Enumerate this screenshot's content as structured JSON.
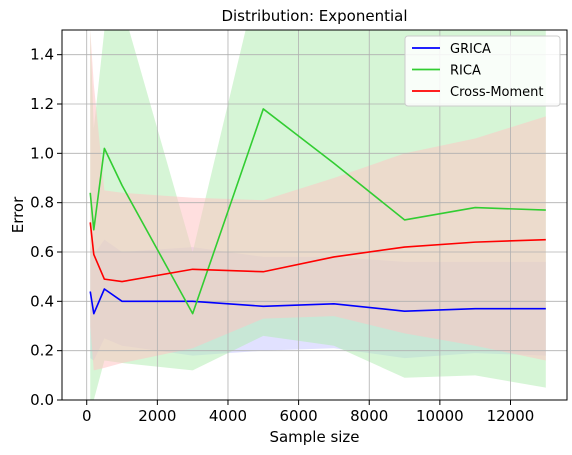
{
  "chart_data": {
    "type": "line",
    "title": "Distribution: Exponential",
    "xlabel": "Sample size",
    "ylabel": "Error",
    "xlim": [
      -700,
      13600
    ],
    "ylim": [
      0,
      1.5
    ],
    "xticks": [
      0,
      2000,
      4000,
      6000,
      8000,
      10000,
      12000
    ],
    "yticks": [
      0.0,
      0.2,
      0.4,
      0.6,
      0.8,
      1.0,
      1.2,
      1.4
    ],
    "grid": true,
    "legend_position": "top-right",
    "x": [
      100,
      200,
      500,
      1000,
      3000,
      5000,
      7000,
      9000,
      11000,
      13000
    ],
    "series": [
      {
        "name": "GRICA",
        "color": "#0000ff",
        "band_color": "#c8c8ff",
        "values": [
          0.44,
          0.35,
          0.45,
          0.4,
          0.4,
          0.38,
          0.39,
          0.36,
          0.37,
          0.37
        ],
        "lower": [
          0.17,
          0.16,
          0.25,
          0.22,
          0.18,
          0.2,
          0.21,
          0.17,
          0.19,
          0.18
        ],
        "upper": [
          0.62,
          0.59,
          0.65,
          0.6,
          0.62,
          0.58,
          0.58,
          0.56,
          0.56,
          0.56
        ]
      },
      {
        "name": "RICA",
        "color": "#32cd32",
        "band_color": "#b4ecb4",
        "values": [
          0.84,
          0.69,
          1.02,
          0.87,
          0.35,
          1.18,
          0.96,
          0.73,
          0.78,
          0.77
        ],
        "lower": [
          0.0,
          0.0,
          0.16,
          0.15,
          0.12,
          0.26,
          0.22,
          0.09,
          0.1,
          0.05
        ],
        "upper": [
          1.5,
          1.1,
          1.5,
          1.6,
          0.6,
          1.8,
          1.9,
          1.7,
          1.6,
          1.5
        ]
      },
      {
        "name": "Cross-Moment",
        "color": "#ff0000",
        "band_color": "#ffc4c4",
        "values": [
          0.72,
          0.59,
          0.49,
          0.48,
          0.53,
          0.52,
          0.58,
          0.62,
          0.64,
          0.65
        ],
        "lower": [
          0.3,
          0.12,
          0.13,
          0.15,
          0.21,
          0.33,
          0.34,
          0.27,
          0.22,
          0.16
        ],
        "upper": [
          1.5,
          1.28,
          0.85,
          0.84,
          0.82,
          0.81,
          0.9,
          1.0,
          1.06,
          1.15
        ]
      }
    ]
  }
}
